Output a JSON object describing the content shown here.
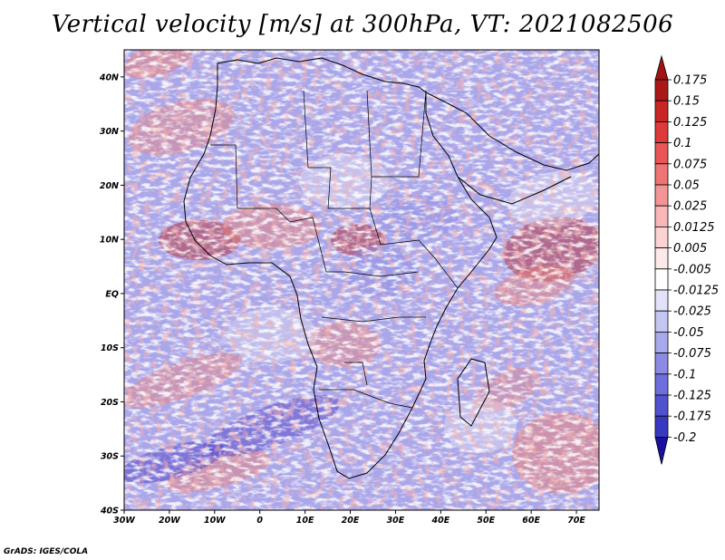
{
  "title": "Vertical velocity [m/s] at 300hPa, VT: 2021082506",
  "credit": "GrADS: IGES/COLA",
  "map": {
    "lon_range": [
      -30,
      75
    ],
    "lat_range": [
      -40,
      45
    ],
    "lon_ticks": [
      {
        "value": -30,
        "label": "30W"
      },
      {
        "value": -20,
        "label": "20W"
      },
      {
        "value": -10,
        "label": "10W"
      },
      {
        "value": 0,
        "label": "0"
      },
      {
        "value": 10,
        "label": "10E"
      },
      {
        "value": 20,
        "label": "20E"
      },
      {
        "value": 30,
        "label": "30E"
      },
      {
        "value": 40,
        "label": "40E"
      },
      {
        "value": 50,
        "label": "50E"
      },
      {
        "value": 60,
        "label": "60E"
      },
      {
        "value": 70,
        "label": "70E"
      }
    ],
    "lat_ticks": [
      {
        "value": 40,
        "label": "40N"
      },
      {
        "value": 30,
        "label": "30N"
      },
      {
        "value": 20,
        "label": "20N"
      },
      {
        "value": 10,
        "label": "10N"
      },
      {
        "value": 0,
        "label": "EQ"
      },
      {
        "value": -10,
        "label": "10S"
      },
      {
        "value": -20,
        "label": "20S"
      },
      {
        "value": -30,
        "label": "30S"
      },
      {
        "value": -40,
        "label": "40S"
      }
    ],
    "field_colors": {
      "strong_up_red": "#b8201e",
      "up_red": "#e8807a",
      "neutral": "#f8f4f6",
      "down_blue": "#8f8fe6",
      "strong_down_blue": "#4e3fc8"
    }
  },
  "colorbar": {
    "levels": [
      {
        "label": "0.175",
        "color": "#aa1818"
      },
      {
        "label": "0.15",
        "color": "#c92626"
      },
      {
        "label": "0.125",
        "color": "#dd3a3a"
      },
      {
        "label": "0.1",
        "color": "#e85656"
      },
      {
        "label": "0.075",
        "color": "#ef7474"
      },
      {
        "label": "0.05",
        "color": "#f49595"
      },
      {
        "label": "0.025",
        "color": "#f8b6b6"
      },
      {
        "label": "0.0125",
        "color": "#fbd3d3"
      },
      {
        "label": "0.005",
        "color": "#fde9e9"
      },
      {
        "label": "-0.005",
        "color": "#ffffff"
      },
      {
        "label": "-0.0125",
        "color": "#e2e2f8"
      },
      {
        "label": "-0.025",
        "color": "#c5c5f2"
      },
      {
        "label": "-0.05",
        "color": "#a8a8ec"
      },
      {
        "label": "-0.075",
        "color": "#8b8be4"
      },
      {
        "label": "-0.1",
        "color": "#6e6edc"
      },
      {
        "label": "-0.125",
        "color": "#5252d0"
      },
      {
        "label": "-0.175",
        "color": "#3838c0"
      },
      {
        "label": "-0.2",
        "color": "#2020a8"
      }
    ],
    "top_triangle_color": "#a01414",
    "bottom_triangle_color": "#1a0fa0"
  }
}
